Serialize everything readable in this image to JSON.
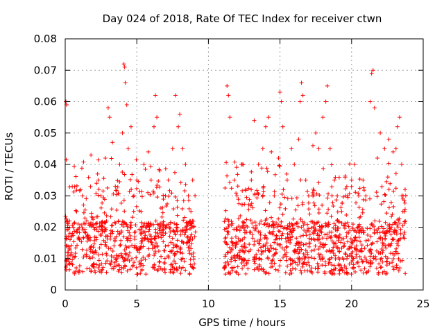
{
  "chart_data": {
    "type": "scatter",
    "title": "Day 024 of 2018, Rate Of TEC Index for receiver ctwn",
    "xlabel": "GPS time / hours",
    "ylabel": "ROTI / TECUs",
    "xlim": [
      0,
      25
    ],
    "ylim": [
      0,
      0.08
    ],
    "x_ticks": [
      0,
      5,
      10,
      15,
      20,
      25
    ],
    "x_tick_labels": [
      "0",
      "5",
      "10",
      "15",
      "20",
      "25"
    ],
    "y_ticks": [
      0,
      0.01,
      0.02,
      0.03,
      0.04,
      0.05,
      0.06,
      0.07,
      0.08
    ],
    "y_tick_labels": [
      "0",
      "0.01",
      "0.02",
      "0.03",
      "0.04",
      "0.05",
      "0.06",
      "0.07",
      "0.08"
    ],
    "grid": true,
    "marker": "+",
    "color": "#ff0000",
    "data_gap_hours": [
      9.1,
      11.1
    ],
    "series": [
      {
        "name": "ROTI",
        "points": [
          [
            0.05,
            0.06
          ],
          [
            0.1,
            0.059
          ],
          [
            0.15,
            0.012
          ],
          [
            0.3,
            0.022
          ],
          [
            0.5,
            0.018
          ],
          [
            0.8,
            0.025
          ],
          [
            1.0,
            0.016
          ],
          [
            1.2,
            0.03
          ],
          [
            1.5,
            0.022
          ],
          [
            1.8,
            0.043
          ],
          [
            2.0,
            0.02
          ],
          [
            2.3,
            0.035
          ],
          [
            2.5,
            0.03
          ],
          [
            2.8,
            0.042
          ],
          [
            3.0,
            0.058
          ],
          [
            3.1,
            0.055
          ],
          [
            3.3,
            0.047
          ],
          [
            3.5,
            0.033
          ],
          [
            3.8,
            0.04
          ],
          [
            4.0,
            0.05
          ],
          [
            4.1,
            0.072
          ],
          [
            4.15,
            0.071
          ],
          [
            4.2,
            0.066
          ],
          [
            4.3,
            0.059
          ],
          [
            4.4,
            0.045
          ],
          [
            4.6,
            0.052
          ],
          [
            4.8,
            0.03
          ],
          [
            5.0,
            0.035
          ],
          [
            5.3,
            0.025
          ],
          [
            5.5,
            0.04
          ],
          [
            5.8,
            0.044
          ],
          [
            6.0,
            0.035
          ],
          [
            6.2,
            0.052
          ],
          [
            6.3,
            0.062
          ],
          [
            6.4,
            0.055
          ],
          [
            6.6,
            0.038
          ],
          [
            7.0,
            0.03
          ],
          [
            7.2,
            0.035
          ],
          [
            7.5,
            0.045
          ],
          [
            7.7,
            0.062
          ],
          [
            7.9,
            0.052
          ],
          [
            8.0,
            0.056
          ],
          [
            8.2,
            0.045
          ],
          [
            8.4,
            0.04
          ],
          [
            8.6,
            0.03
          ],
          [
            8.9,
            0.035
          ],
          [
            11.3,
            0.065
          ],
          [
            11.4,
            0.062
          ],
          [
            11.5,
            0.055
          ],
          [
            11.8,
            0.035
          ],
          [
            12.0,
            0.03
          ],
          [
            12.3,
            0.04
          ],
          [
            12.6,
            0.032
          ],
          [
            13.0,
            0.035
          ],
          [
            13.2,
            0.054
          ],
          [
            13.5,
            0.04
          ],
          [
            13.8,
            0.045
          ],
          [
            14.0,
            0.052
          ],
          [
            14.2,
            0.055
          ],
          [
            14.4,
            0.044
          ],
          [
            14.6,
            0.03
          ],
          [
            14.9,
            0.042
          ],
          [
            15.0,
            0.063
          ],
          [
            15.1,
            0.06
          ],
          [
            15.2,
            0.052
          ],
          [
            15.5,
            0.035
          ],
          [
            15.8,
            0.045
          ],
          [
            16.0,
            0.04
          ],
          [
            16.3,
            0.048
          ],
          [
            16.4,
            0.06
          ],
          [
            16.5,
            0.066
          ],
          [
            16.6,
            0.062
          ],
          [
            16.8,
            0.035
          ],
          [
            17.0,
            0.03
          ],
          [
            17.3,
            0.046
          ],
          [
            17.5,
            0.05
          ],
          [
            17.7,
            0.045
          ],
          [
            18.0,
            0.055
          ],
          [
            18.2,
            0.06
          ],
          [
            18.3,
            0.065
          ],
          [
            18.5,
            0.045
          ],
          [
            18.8,
            0.035
          ],
          [
            19.0,
            0.03
          ],
          [
            19.3,
            0.025
          ],
          [
            19.6,
            0.03
          ],
          [
            20.0,
            0.035
          ],
          [
            20.2,
            0.04
          ],
          [
            20.5,
            0.03
          ],
          [
            20.8,
            0.035
          ],
          [
            21.0,
            0.03
          ],
          [
            21.3,
            0.06
          ],
          [
            21.4,
            0.069
          ],
          [
            21.5,
            0.07
          ],
          [
            21.6,
            0.058
          ],
          [
            21.8,
            0.042
          ],
          [
            22.0,
            0.05
          ],
          [
            22.3,
            0.045
          ],
          [
            22.6,
            0.048
          ],
          [
            22.9,
            0.044
          ],
          [
            23.1,
            0.045
          ],
          [
            23.2,
            0.052
          ],
          [
            23.35,
            0.055
          ],
          [
            23.5,
            0.04
          ],
          [
            23.7,
            0.025
          ]
        ]
      }
    ]
  }
}
